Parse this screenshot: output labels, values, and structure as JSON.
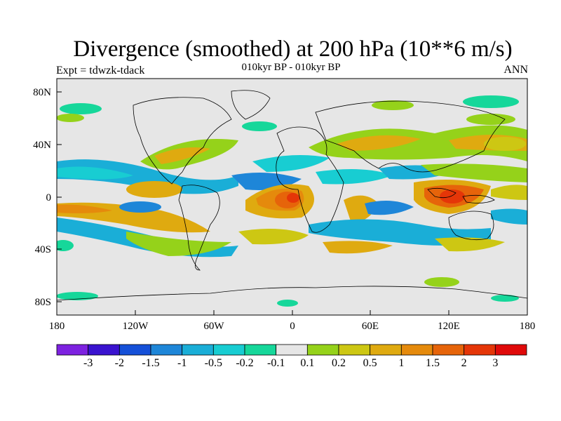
{
  "title": "Divergence (smoothed) at 200 hPa (10**6 m/s)",
  "subtitle_left": "Expt = tdwzk-tdack",
  "subtitle_center": "010kyr BP - 010kyr BP",
  "subtitle_right": "ANN",
  "map": {
    "lon_labels": [
      "180",
      "120W",
      "60W",
      "0",
      "60E",
      "120E",
      "180"
    ],
    "lat_labels": [
      "80N",
      "40N",
      "0",
      "40S",
      "80S"
    ],
    "background_color": "#e6e6e6"
  },
  "colorbar": {
    "colors": [
      "#7d22e0",
      "#3a13cf",
      "#1550d8",
      "#1e86d8",
      "#1aaed7",
      "#18cdd2",
      "#16d79a",
      "#e6e6e6",
      "#95d21a",
      "#cdc713",
      "#dfaa10",
      "#e58a0c",
      "#e6640a",
      "#e53608",
      "#e00a0a"
    ],
    "tick_labels": [
      "-3",
      "-2",
      "-1.5",
      "-1",
      "-0.5",
      "-0.2",
      "-0.1",
      "0.1",
      "0.2",
      "0.5",
      "1",
      "1.5",
      "2",
      "3"
    ]
  }
}
